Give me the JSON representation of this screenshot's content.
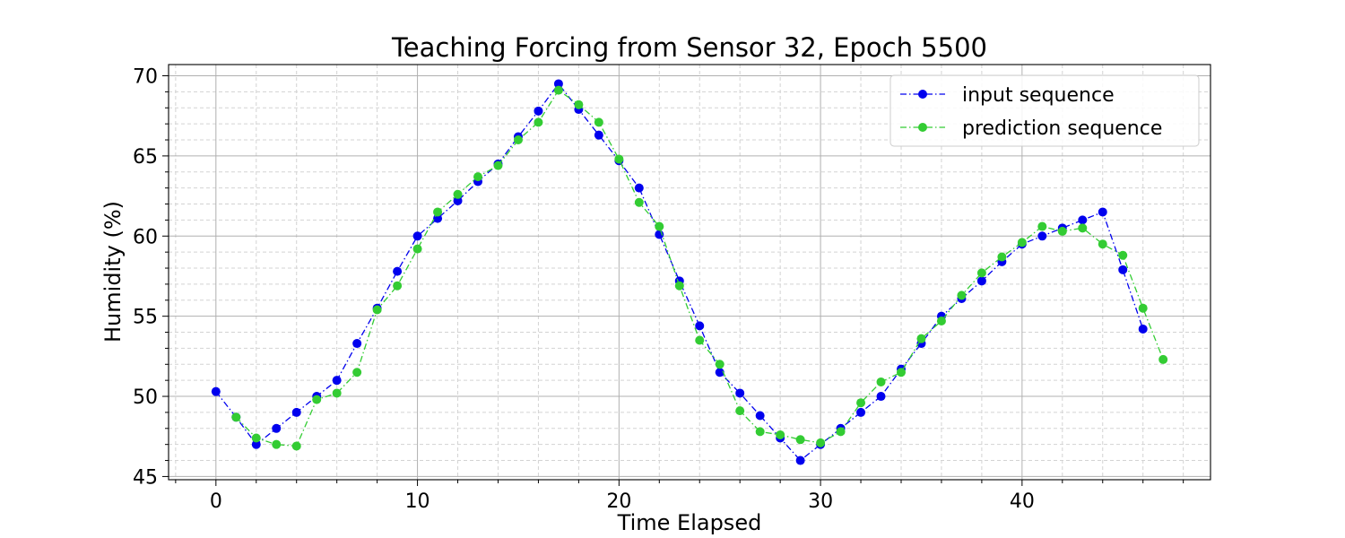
{
  "chart_data": {
    "type": "line",
    "title": "Teaching Forcing from Sensor 32, Epoch 5500",
    "xlabel": "Time Elapsed",
    "ylabel": "Humidity (%)",
    "xlim": [
      -2.35,
      49.35
    ],
    "ylim": [
      44.8,
      70.7
    ],
    "xticks": [
      0,
      10,
      20,
      30,
      40
    ],
    "yticks": [
      45,
      50,
      55,
      60,
      65,
      70
    ],
    "grid": true,
    "minor_grid": true,
    "legend_position": "top-right",
    "series": [
      {
        "name": "input sequence",
        "color": "#0000ee",
        "marker": "circle",
        "linestyle": "dash-dot",
        "x": [
          0,
          1,
          2,
          3,
          4,
          5,
          6,
          7,
          8,
          9,
          10,
          11,
          12,
          13,
          14,
          15,
          16,
          17,
          18,
          19,
          20,
          21,
          22,
          23,
          24,
          25,
          26,
          27,
          28,
          29,
          30,
          31,
          32,
          33,
          34,
          35,
          36,
          37,
          38,
          39,
          40,
          41,
          42,
          43,
          44,
          45,
          46
        ],
        "y": [
          50.3,
          48.7,
          47.0,
          48.0,
          49.0,
          50.0,
          51.0,
          53.3,
          55.5,
          57.8,
          60.0,
          61.1,
          62.2,
          63.4,
          64.5,
          66.2,
          67.8,
          69.5,
          67.9,
          66.3,
          64.7,
          63.0,
          60.1,
          57.2,
          54.4,
          51.5,
          50.2,
          48.8,
          47.4,
          46.0,
          47.0,
          48.0,
          49.0,
          50.0,
          51.7,
          53.3,
          55.0,
          56.1,
          57.2,
          58.4,
          59.5,
          60.0,
          60.5,
          61.0,
          61.5,
          57.9,
          54.2
        ]
      },
      {
        "name": "prediction sequence",
        "color": "#33cc33",
        "marker": "circle",
        "linestyle": "dash-dot",
        "x": [
          1,
          2,
          3,
          4,
          5,
          6,
          7,
          8,
          9,
          10,
          11,
          12,
          13,
          14,
          15,
          16,
          17,
          18,
          19,
          20,
          21,
          22,
          23,
          24,
          25,
          26,
          27,
          28,
          29,
          30,
          31,
          32,
          33,
          34,
          35,
          36,
          37,
          38,
          39,
          40,
          41,
          42,
          43,
          44,
          45,
          46,
          47
        ],
        "y": [
          48.7,
          47.4,
          47.0,
          46.9,
          49.8,
          50.2,
          51.5,
          55.4,
          56.9,
          59.2,
          61.5,
          62.6,
          63.7,
          64.4,
          66.0,
          67.1,
          69.1,
          68.2,
          67.1,
          64.8,
          62.1,
          60.6,
          56.9,
          53.5,
          52.0,
          49.1,
          47.8,
          47.6,
          47.3,
          47.1,
          47.8,
          49.6,
          50.9,
          51.5,
          53.6,
          54.7,
          56.3,
          57.7,
          58.7,
          59.6,
          60.6,
          60.3,
          60.5,
          59.5,
          58.8,
          55.5,
          52.3
        ]
      }
    ]
  }
}
